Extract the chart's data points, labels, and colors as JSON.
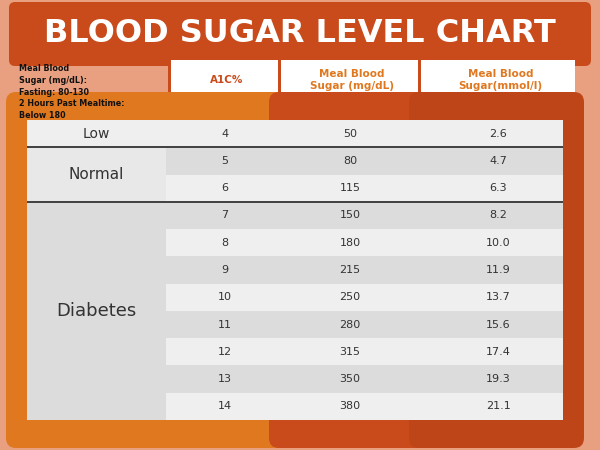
{
  "title": "BLOOD SUGAR LEVEL CHART",
  "title_bg": "#C94A1A",
  "title_color": "#FFFFFF",
  "bg_color": "#E8A080",
  "header_left_text": "Meal Blood\nSugar (mg/dL):\nFasting: 80-130\n2 Hours Past Mealtime:\nBelow 180",
  "col_headers": [
    "A1C%",
    "Meal Blood\nSugar (mg/dL)",
    "Meal Blood\nSugar(mmol/l)"
  ],
  "col_header_text_colors": [
    "#C94A1A",
    "#E07820",
    "#E07820"
  ],
  "a1c": [
    "4",
    "5",
    "6",
    "7",
    "8",
    "9",
    "10",
    "11",
    "12",
    "13",
    "14"
  ],
  "meal_mg": [
    "50",
    "80",
    "115",
    "150",
    "180",
    "215",
    "250",
    "280",
    "315",
    "350",
    "380"
  ],
  "meal_mmol": [
    "2.6",
    "4.7",
    "6.3",
    "8.2",
    "10.0",
    "11.9",
    "13.7",
    "15.6",
    "17.4",
    "19.3",
    "21.1"
  ],
  "row_light": "#EFEFEF",
  "row_dark": "#DCDCDC",
  "col0_panel_color": "#E07820",
  "col1_panel_color": "#E07820",
  "col2_panel_color": "#C94A1A",
  "col3_panel_color": "#BE4518",
  "label_low_bg": "#EFEFEF",
  "label_normal_bg": "#E8E8E8",
  "label_diabetes_bg": "#DCDCDC",
  "sep_color": "#444444",
  "header_border_color": "#C94A1A",
  "header_bg": "#FFFFFF"
}
